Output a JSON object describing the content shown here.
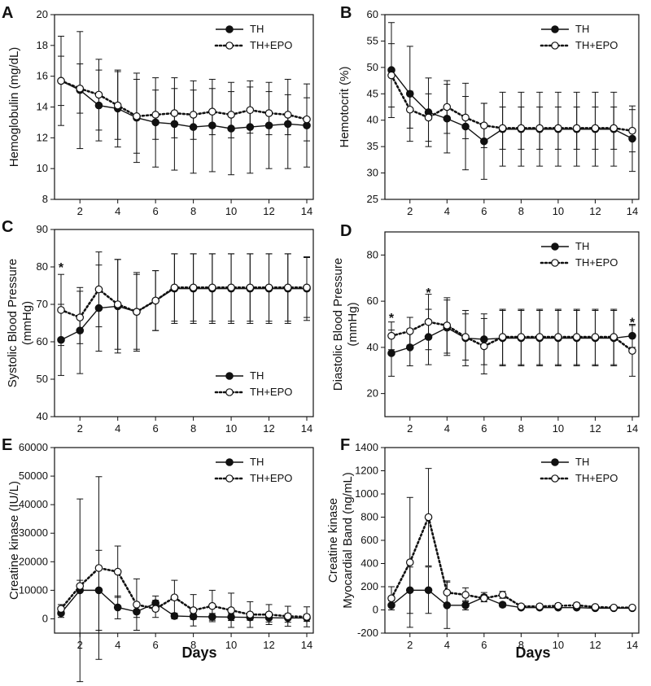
{
  "figure": {
    "x_label": "Days"
  },
  "chart_data": [
    {
      "type": "line",
      "panel_label": "A",
      "ylabel": "Hemoglobulin (mg/dL)",
      "ylim": [
        8,
        20
      ],
      "yticks": [
        8,
        10,
        12,
        14,
        16,
        18,
        20
      ],
      "xlim": [
        1,
        14
      ],
      "xticks": [
        2,
        4,
        6,
        8,
        10,
        12,
        14
      ],
      "legend_position": "top-right",
      "x": [
        1,
        2,
        3,
        4,
        5,
        6,
        7,
        8,
        9,
        10,
        11,
        12,
        13,
        14
      ],
      "series": [
        {
          "name": "TH",
          "marker": "filled",
          "line": "solid",
          "values": [
            15.7,
            15.1,
            14.1,
            13.9,
            13.3,
            13.0,
            12.9,
            12.7,
            12.8,
            12.6,
            12.7,
            12.8,
            12.9,
            12.8
          ],
          "err": [
            2.9,
            3.8,
            2.3,
            2.5,
            2.9,
            2.9,
            3.0,
            3.0,
            3.0,
            3.0,
            3.0,
            2.8,
            2.9,
            2.7
          ]
        },
        {
          "name": "TH+EPO",
          "marker": "open",
          "line": "dotted",
          "values": [
            15.7,
            15.2,
            14.8,
            14.1,
            13.4,
            13.5,
            13.6,
            13.5,
            13.7,
            13.5,
            13.8,
            13.6,
            13.5,
            13.2
          ],
          "err": [
            1.6,
            1.6,
            2.3,
            2.2,
            2.4,
            1.6,
            1.6,
            1.6,
            1.5,
            1.5,
            1.5,
            1.4,
            1.3,
            1.4
          ]
        }
      ],
      "annotations": []
    },
    {
      "type": "line",
      "panel_label": "B",
      "ylabel": "Hemotocrit (%)",
      "ylim": [
        25,
        60
      ],
      "yticks": [
        25,
        30,
        35,
        40,
        45,
        50,
        55,
        60
      ],
      "xlim": [
        1,
        14
      ],
      "xticks": [
        2,
        4,
        6,
        8,
        10,
        12,
        14
      ],
      "legend_position": "top-right",
      "x": [
        1,
        2,
        3,
        4,
        5,
        6,
        7,
        8,
        9,
        10,
        11,
        12,
        13,
        14
      ],
      "series": [
        {
          "name": "TH",
          "marker": "filled",
          "line": "solid",
          "values": [
            49.5,
            45.0,
            41.5,
            40.3,
            38.8,
            36.0,
            38.3,
            38.3,
            38.3,
            38.3,
            38.3,
            38.3,
            38.3,
            36.5
          ],
          "err": [
            9.0,
            9.0,
            6.5,
            6.5,
            8.2,
            7.2,
            7.0,
            7.0,
            7.0,
            7.0,
            7.0,
            7.0,
            7.0,
            6.2
          ]
        },
        {
          "name": "TH+EPO",
          "marker": "open",
          "line": "dotted",
          "values": [
            48.5,
            42.0,
            40.5,
            42.5,
            40.5,
            39.0,
            38.5,
            38.5,
            38.5,
            38.5,
            38.5,
            38.5,
            38.5,
            38.0
          ],
          "err": [
            6.0,
            3.5,
            4.5,
            5.0,
            4.0,
            4.2,
            4.0,
            4.0,
            4.0,
            4.0,
            4.0,
            4.0,
            4.0,
            4.0
          ]
        }
      ],
      "annotations": []
    },
    {
      "type": "line",
      "panel_label": "C",
      "ylabel": "Systolic Blood Pressure (mmHg)",
      "ylabel_lines": [
        "Systolic Blood Pressure",
        "(mmHg)"
      ],
      "ylim": [
        40,
        90
      ],
      "yticks": [
        40,
        50,
        60,
        70,
        80,
        90
      ],
      "xlim": [
        1,
        14
      ],
      "xticks": [
        2,
        4,
        6,
        8,
        10,
        12,
        14
      ],
      "legend_position": "bottom-right",
      "x": [
        1,
        2,
        3,
        4,
        5,
        6,
        7,
        8,
        9,
        10,
        11,
        12,
        13,
        14
      ],
      "series": [
        {
          "name": "TH",
          "marker": "filled",
          "line": "solid",
          "values": [
            60.5,
            63.0,
            69.0,
            69.5,
            68.0,
            71.0,
            74.2,
            74.2,
            74.2,
            74.2,
            74.2,
            74.2,
            74.2,
            74.2
          ],
          "err": [
            9.5,
            11.5,
            11.5,
            12.5,
            10.5,
            8.0,
            9.3,
            9.3,
            9.3,
            9.3,
            9.3,
            9.3,
            9.3,
            8.5
          ]
        },
        {
          "name": "TH+EPO",
          "marker": "open",
          "line": "dotted",
          "values": [
            68.5,
            66.5,
            74.0,
            70.0,
            68.0,
            71.0,
            74.5,
            74.5,
            74.5,
            74.5,
            74.5,
            74.5,
            74.5,
            74.5
          ],
          "err": [
            9.5,
            7.0,
            10.0,
            12.0,
            10.0,
            8.0,
            9.0,
            9.0,
            9.0,
            9.0,
            9.0,
            9.0,
            9.0,
            8.0
          ]
        }
      ],
      "annotations": [
        {
          "text": "*",
          "x": 1,
          "y": 80
        }
      ]
    },
    {
      "type": "line",
      "panel_label": "D",
      "ylabel": "Diastolic Blood Pressure (mmHg)",
      "ylabel_lines": [
        "Diastolic Blood Pressure",
        "(mmHg)"
      ],
      "ylim": [
        10,
        90
      ],
      "yticks": [
        20,
        40,
        60,
        80
      ],
      "xlim": [
        1,
        14
      ],
      "xticks": [
        2,
        4,
        6,
        8,
        10,
        12,
        14
      ],
      "legend_position": "top-right",
      "x": [
        1,
        2,
        3,
        4,
        5,
        6,
        7,
        8,
        9,
        10,
        11,
        12,
        13,
        14
      ],
      "series": [
        {
          "name": "TH",
          "marker": "filled",
          "line": "solid",
          "values": [
            37.5,
            40.0,
            44.5,
            48.5,
            44.0,
            43.5,
            44.0,
            44.0,
            44.0,
            44.0,
            44.0,
            44.0,
            44.0,
            45.0
          ],
          "err": [
            10.0,
            8.0,
            12.0,
            12.0,
            12.0,
            11.0,
            12.0,
            12.0,
            12.0,
            12.0,
            12.0,
            12.0,
            12.0,
            5.0
          ]
        },
        {
          "name": "TH+EPO",
          "marker": "open",
          "line": "dotted",
          "values": [
            45.0,
            47.0,
            51.0,
            49.5,
            44.5,
            40.5,
            44.5,
            44.5,
            44.5,
            44.5,
            44.5,
            44.5,
            44.5,
            38.5
          ],
          "err": [
            6.0,
            6.0,
            12.0,
            12.0,
            10.0,
            12.0,
            12.0,
            12.0,
            12.0,
            12.0,
            12.0,
            12.0,
            12.0,
            11.0
          ]
        }
      ],
      "annotations": [
        {
          "text": "*",
          "x": 1,
          "y": 53
        },
        {
          "text": "*",
          "x": 3,
          "y": 64
        },
        {
          "text": "*",
          "x": 14,
          "y": 51
        }
      ]
    },
    {
      "type": "line",
      "panel_label": "E",
      "ylabel": "Creatine kinase (IU/L)",
      "ylim": [
        -5000,
        60000
      ],
      "yticks": [
        0,
        10000,
        20000,
        30000,
        40000,
        50000,
        60000
      ],
      "xlim": [
        1,
        14
      ],
      "xticks": [
        2,
        4,
        6,
        8,
        10,
        12,
        14
      ],
      "legend_position": "top-right",
      "x": [
        1,
        2,
        3,
        4,
        5,
        6,
        7,
        8,
        9,
        10,
        11,
        12,
        13,
        14
      ],
      "series": [
        {
          "name": "TH",
          "marker": "filled",
          "line": "solid",
          "values": [
            2000,
            10000,
            10000,
            4000,
            2500,
            5500,
            1000,
            800,
            700,
            600,
            500,
            400,
            300,
            300
          ],
          "err": [
            1500,
            32000,
            14000,
            4000,
            2000,
            2500,
            1000,
            1000,
            1200,
            1200,
            1000,
            1500,
            1500,
            1200
          ]
        },
        {
          "name": "TH+EPO",
          "marker": "open",
          "line": "dotted",
          "values": [
            3500,
            11500,
            17800,
            16500,
            5000,
            3500,
            7500,
            3000,
            4500,
            3000,
            1500,
            1500,
            900,
            700
          ],
          "err": [
            1500,
            2000,
            32000,
            9000,
            9000,
            3000,
            6000,
            5500,
            5500,
            6000,
            4500,
            3500,
            3500,
            3500
          ]
        }
      ],
      "annotations": []
    },
    {
      "type": "line",
      "panel_label": "F",
      "ylabel": "Creatine kinase Myocardial Band (ng/mL)",
      "ylabel_lines": [
        "Creatine kinase",
        "Myocardial Band (ng/mL)"
      ],
      "ylim": [
        -200,
        1400
      ],
      "yticks": [
        -200,
        0,
        200,
        400,
        600,
        800,
        1000,
        1200,
        1400
      ],
      "xlim": [
        1,
        14
      ],
      "xticks": [
        2,
        4,
        6,
        8,
        10,
        12,
        14
      ],
      "legend_position": "top-right",
      "x": [
        1,
        2,
        3,
        4,
        5,
        6,
        7,
        8,
        9,
        10,
        11,
        12,
        13,
        14
      ],
      "series": [
        {
          "name": "TH",
          "marker": "filled",
          "line": "solid",
          "values": [
            40,
            170,
            170,
            40,
            40,
            110,
            45,
            20,
            20,
            20,
            20,
            15,
            15,
            15
          ],
          "err": [
            40,
            200,
            200,
            200,
            40,
            40,
            20,
            10,
            10,
            10,
            10,
            10,
            10,
            10
          ]
        },
        {
          "name": "TH+EPO",
          "marker": "open",
          "line": "dotted",
          "values": [
            100,
            410,
            800,
            150,
            130,
            100,
            130,
            30,
            30,
            35,
            40,
            25,
            20,
            20
          ],
          "err": [
            100,
            560,
            420,
            100,
            60,
            30,
            30,
            20,
            20,
            20,
            20,
            15,
            15,
            15
          ]
        }
      ],
      "annotations": []
    }
  ]
}
